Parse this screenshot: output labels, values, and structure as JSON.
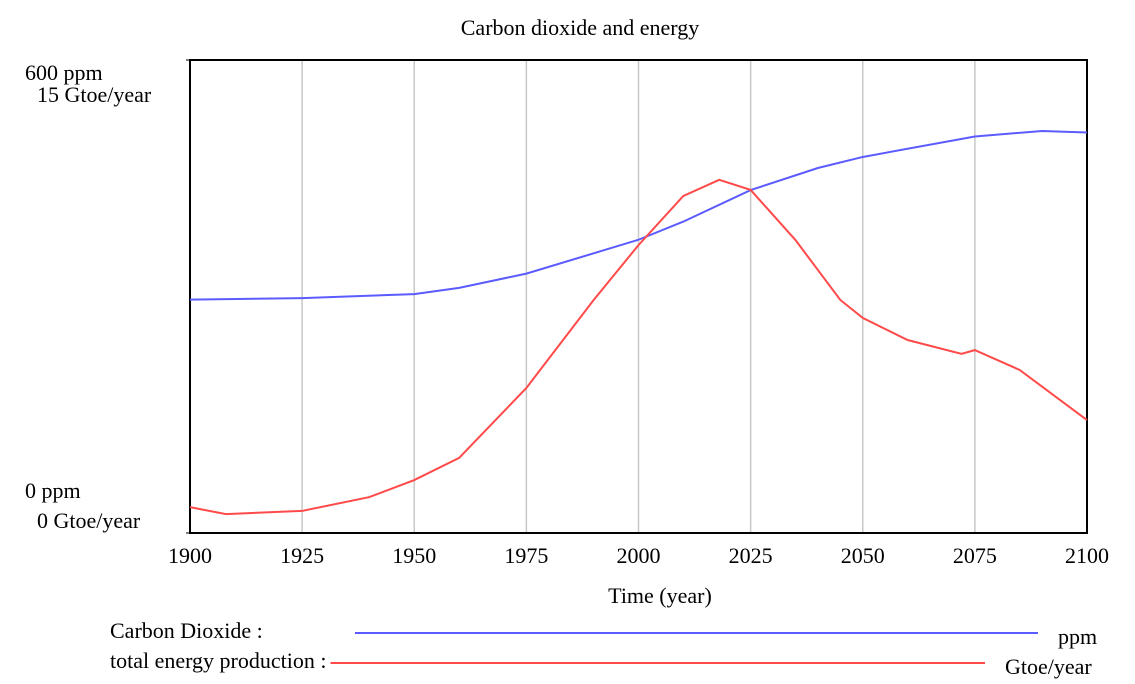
{
  "chart_data": {
    "type": "line",
    "title": "Carbon dioxide and energy",
    "xlabel": "Time (year)",
    "xlim": [
      1900,
      2100
    ],
    "xticks": [
      1900,
      1925,
      1950,
      1975,
      2000,
      2025,
      2050,
      2075,
      2100
    ],
    "ylim": [
      0,
      600
    ],
    "yticks": [
      {
        "value": 0,
        "label": "0 ppm"
      },
      {
        "value": 600,
        "label": "600 ppm"
      }
    ],
    "y2lim": [
      0,
      15
    ],
    "y2ticks": [
      {
        "value": 0,
        "label": "0 Gtoe/year"
      },
      {
        "value": 15,
        "label": "15 Gtoe/year"
      }
    ],
    "grid": true,
    "series": [
      {
        "name": "Carbon Dioxide :",
        "unit": "ppm",
        "color": "#5b5bff",
        "x": [
          1900,
          1925,
          1950,
          1960,
          1975,
          2000,
          2010,
          2025,
          2040,
          2050,
          2075,
          2090,
          2100
        ],
        "values": [
          296,
          298,
          303,
          311,
          329,
          372,
          395,
          435,
          463,
          477,
          503,
          510,
          508
        ]
      },
      {
        "name": "total energy production :",
        "unit": "Gtoe/year",
        "color": "#ff4a4a",
        "axis": "y2",
        "x": [
          1900,
          1908,
          1925,
          1940,
          1950,
          1960,
          1975,
          1990,
          2000,
          2010,
          2018,
          2025,
          2035,
          2045,
          2050,
          2060,
          2072,
          2075,
          2085,
          2100
        ],
        "values": [
          0.82,
          0.6,
          0.7,
          1.14,
          1.68,
          2.38,
          4.6,
          7.39,
          9.13,
          10.69,
          11.2,
          10.88,
          9.29,
          7.39,
          6.82,
          6.12,
          5.68,
          5.8,
          5.17,
          3.58
        ]
      }
    ]
  }
}
